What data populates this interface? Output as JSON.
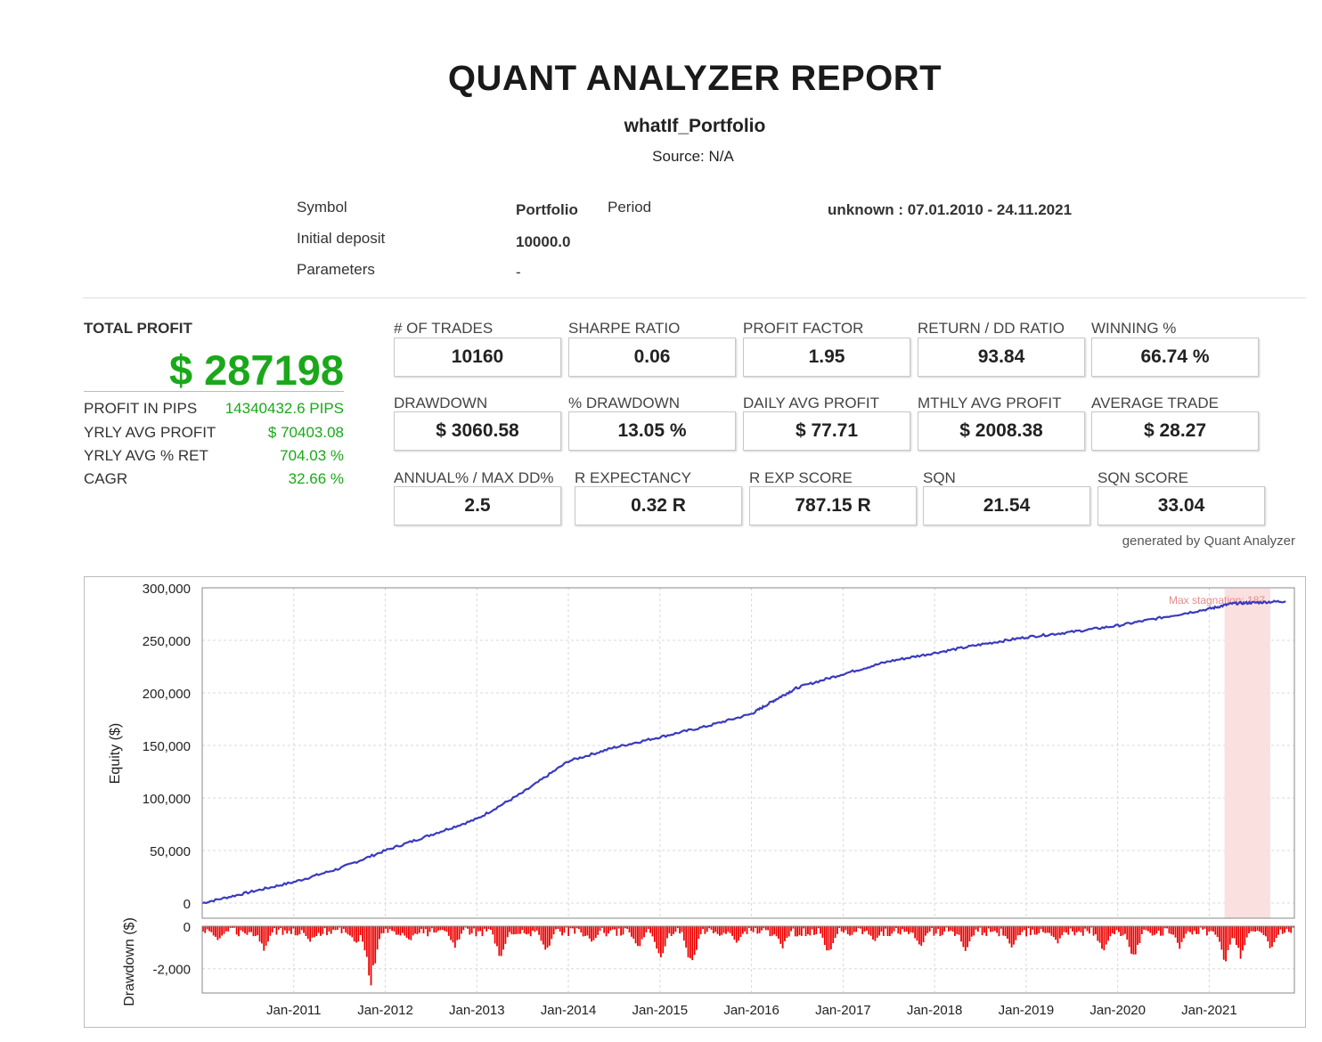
{
  "report": {
    "title": "QUANT ANALYZER REPORT",
    "subtitle": "whatIf_Portfolio",
    "source": "Source: N/A"
  },
  "meta": {
    "symbol_label": "Symbol",
    "symbol_value": "Portfolio",
    "period_label": "Period",
    "period_value": "unknown : 07.01.2010 - 24.11.2021",
    "deposit_label": "Initial deposit",
    "deposit_value": "10000.0",
    "parameters_label": "Parameters",
    "parameters_value": "-"
  },
  "total_profit": {
    "label": "TOTAL PROFIT",
    "value": "$ 287198",
    "rows": [
      {
        "label": "PROFIT IN PIPS",
        "value": "14340432.6 PIPS"
      },
      {
        "label": "YRLY AVG PROFIT",
        "value": "$ 70403.08"
      },
      {
        "label": "YRLY AVG % RET",
        "value": "704.03 %"
      },
      {
        "label": "CAGR",
        "value": "32.66 %"
      }
    ]
  },
  "stats": [
    [
      {
        "label": "# OF TRADES",
        "value": "10160"
      },
      {
        "label": "SHARPE RATIO",
        "value": "0.06"
      },
      {
        "label": "PROFIT FACTOR",
        "value": "1.95"
      },
      {
        "label": "RETURN / DD RATIO",
        "value": "93.84"
      },
      {
        "label": "WINNING %",
        "value": "66.74 %"
      }
    ],
    [
      {
        "label": "DRAWDOWN",
        "value": "$ 3060.58"
      },
      {
        "label": "% DRAWDOWN",
        "value": "13.05 %"
      },
      {
        "label": "DAILY AVG PROFIT",
        "value": "$ 77.71"
      },
      {
        "label": "MTHLY AVG PROFIT",
        "value": "$ 2008.38"
      },
      {
        "label": "AVERAGE TRADE",
        "value": "$ 28.27"
      }
    ],
    [
      {
        "label": "ANNUAL% / MAX DD%",
        "value": "2.5"
      },
      {
        "label": "R EXPECTANCY",
        "value": "0.32 R"
      },
      {
        "label": "R EXP SCORE",
        "value": "787.15 R"
      },
      {
        "label": "SQN",
        "value": "21.54"
      },
      {
        "label": "SQN SCORE",
        "value": "33.04"
      }
    ]
  ],
  "generated_by": "generated by Quant Analyzer",
  "colors": {
    "green": "#1aa81a",
    "equity_line": "#3a3abf",
    "drawdown": "#ee0000",
    "stagnation": "#fbe0e0"
  },
  "chart_data": [
    {
      "type": "line",
      "title": "",
      "ylabel": "Equity ($)",
      "xlabel": "",
      "ylim": [
        0,
        300000
      ],
      "yticks": [
        "300,000",
        "250,000",
        "200,000",
        "150,000",
        "100,000",
        "50,000",
        "0"
      ],
      "xticks": [
        "Jan-2011",
        "Jan-2012",
        "Jan-2013",
        "Jan-2014",
        "Jan-2015",
        "Jan-2016",
        "Jan-2017",
        "Jan-2018",
        "Jan-2019",
        "Jan-2020",
        "Jan-2021"
      ],
      "grid": true,
      "annotation": "Max stagnation: 187",
      "stagnation_range": [
        "2021-03",
        "2021-09"
      ],
      "series": [
        {
          "x": [
            "2010-01",
            "2010-07",
            "2011-01",
            "2011-07",
            "2012-01",
            "2012-07",
            "2013-01",
            "2013-07",
            "2014-01",
            "2014-07",
            "2015-01",
            "2015-07",
            "2016-01",
            "2016-04",
            "2016-07",
            "2017-01",
            "2017-07",
            "2018-01",
            "2018-07",
            "2019-01",
            "2019-07",
            "2020-01",
            "2020-07",
            "2021-01",
            "2021-04",
            "2021-07",
            "2021-11"
          ],
          "y": [
            0,
            10000,
            20000,
            33000,
            50000,
            65000,
            80000,
            105000,
            135000,
            148000,
            158000,
            168000,
            180000,
            193000,
            205000,
            218000,
            230000,
            238000,
            246000,
            253000,
            258000,
            264000,
            272000,
            280000,
            285000,
            286000,
            287198
          ]
        }
      ]
    },
    {
      "type": "bar",
      "title": "",
      "ylabel": "Drawdown ($)",
      "xlabel": "",
      "ylim": [
        -3100,
        0
      ],
      "yticks": [
        "0",
        "-2,000"
      ],
      "xticks": [
        "Jan-2011",
        "Jan-2012",
        "Jan-2013",
        "Jan-2014",
        "Jan-2015",
        "Jan-2016",
        "Jan-2017",
        "Jan-2018",
        "Jan-2019",
        "Jan-2020",
        "Jan-2021"
      ],
      "series": [
        {
          "name": "",
          "x": [
            "2010-03",
            "2010-09",
            "2011-03",
            "2011-09",
            "2011-11",
            "2012-04",
            "2012-10",
            "2013-04",
            "2013-10",
            "2014-04",
            "2014-10",
            "2015-01",
            "2015-05",
            "2015-11",
            "2016-05",
            "2016-11",
            "2017-05",
            "2017-11",
            "2018-05",
            "2018-11",
            "2019-05",
            "2019-11",
            "2020-03",
            "2020-09",
            "2021-03",
            "2021-05",
            "2021-09"
          ],
          "y": [
            -800,
            -1200,
            -900,
            -1000,
            -3000,
            -800,
            -1100,
            -1700,
            -1400,
            -900,
            -1200,
            -1700,
            -2200,
            -900,
            -1100,
            -1400,
            -800,
            -1100,
            -1300,
            -1200,
            -900,
            -1400,
            -1800,
            -1100,
            -1900,
            -1600,
            -1200
          ]
        }
      ]
    }
  ]
}
